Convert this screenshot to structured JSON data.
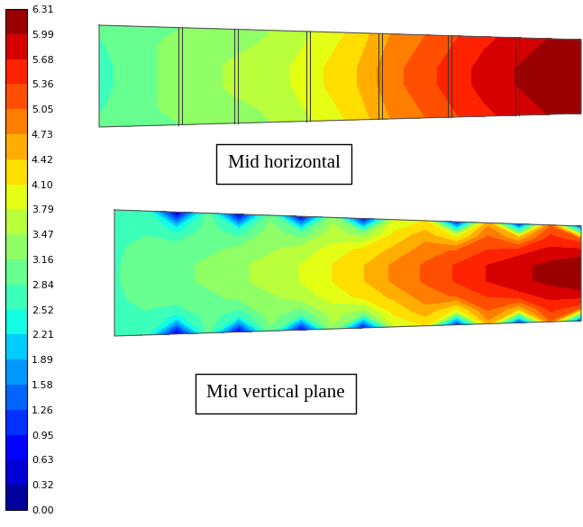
{
  "chart_data": {
    "type": "heatmap",
    "colorbar": {
      "range": [
        0.0,
        6.31
      ],
      "ticks": [
        {
          "value": 0.0,
          "label": "0.00"
        },
        {
          "value": 0.32,
          "label": "0.32"
        },
        {
          "value": 0.63,
          "label": "0.63"
        },
        {
          "value": 0.95,
          "label": "0.95"
        },
        {
          "value": 1.26,
          "label": "1.26"
        },
        {
          "value": 1.58,
          "label": "1.58"
        },
        {
          "value": 1.89,
          "label": "1.89"
        },
        {
          "value": 2.21,
          "label": "2.21"
        },
        {
          "value": 2.52,
          "label": "2.52"
        },
        {
          "value": 2.84,
          "label": "2.84"
        },
        {
          "value": 3.16,
          "label": "3.16"
        },
        {
          "value": 3.47,
          "label": "3.47"
        },
        {
          "value": 3.79,
          "label": "3.79"
        },
        {
          "value": 4.1,
          "label": "4.10"
        },
        {
          "value": 4.42,
          "label": "4.42"
        },
        {
          "value": 4.73,
          "label": "4.73"
        },
        {
          "value": 5.05,
          "label": "5.05"
        },
        {
          "value": 5.36,
          "label": "5.36"
        },
        {
          "value": 5.68,
          "label": "5.68"
        },
        {
          "value": 5.99,
          "label": "5.99"
        },
        {
          "value": 6.31,
          "label": "6.31"
        }
      ]
    },
    "panels": [
      {
        "label": "Mid horizontal",
        "cells": [
          [
            2.9,
            3.0,
            3.1,
            3.2,
            3.3,
            3.4,
            3.6,
            3.9,
            4.2,
            4.7,
            5.0,
            5.3,
            5.6,
            5.8,
            6.0,
            6.1
          ],
          [
            2.8,
            3.0,
            3.2,
            3.3,
            3.4,
            3.5,
            3.7,
            4.0,
            4.3,
            4.8,
            5.1,
            5.4,
            5.7,
            5.9,
            6.1,
            6.2
          ],
          [
            2.7,
            3.0,
            3.2,
            3.3,
            3.5,
            3.6,
            3.8,
            4.1,
            4.4,
            4.9,
            5.2,
            5.5,
            5.8,
            6.0,
            6.2,
            6.3
          ],
          [
            2.7,
            3.0,
            3.2,
            3.3,
            3.5,
            3.6,
            3.8,
            4.1,
            4.4,
            4.9,
            5.2,
            5.5,
            5.8,
            6.0,
            6.2,
            6.3
          ],
          [
            2.8,
            3.0,
            3.2,
            3.3,
            3.4,
            3.5,
            3.7,
            4.0,
            4.3,
            4.8,
            5.1,
            5.4,
            5.7,
            5.9,
            6.1,
            6.2
          ],
          [
            2.9,
            3.0,
            3.1,
            3.2,
            3.3,
            3.4,
            3.6,
            3.9,
            4.2,
            4.7,
            5.0,
            5.3,
            5.6,
            5.8,
            6.0,
            6.1
          ]
        ]
      },
      {
        "label": "Mid vertical plane",
        "cells": [
          [
            2.6,
            2.7,
            0.5,
            2.9,
            0.6,
            3.1,
            0.6,
            3.4,
            0.7,
            3.8,
            4.1,
            0.8,
            4.6,
            0.9,
            5.0,
            0.9
          ],
          [
            2.7,
            2.8,
            2.4,
            3.0,
            2.6,
            3.3,
            2.9,
            3.6,
            3.3,
            4.2,
            4.6,
            4.0,
            5.1,
            4.5,
            5.5,
            5.2
          ],
          [
            2.8,
            2.9,
            3.0,
            3.1,
            3.2,
            3.4,
            3.6,
            3.9,
            4.2,
            4.5,
            4.9,
            5.1,
            5.4,
            5.6,
            5.8,
            5.9
          ],
          [
            2.8,
            3.0,
            3.1,
            3.2,
            3.4,
            3.6,
            3.8,
            4.1,
            4.4,
            4.8,
            5.1,
            5.4,
            5.7,
            5.9,
            6.1,
            6.2
          ],
          [
            2.8,
            3.0,
            3.1,
            3.2,
            3.4,
            3.6,
            3.8,
            4.1,
            4.4,
            4.8,
            5.1,
            5.4,
            5.7,
            5.9,
            6.1,
            6.2
          ],
          [
            2.8,
            2.9,
            3.0,
            3.1,
            3.2,
            3.4,
            3.6,
            3.9,
            4.2,
            4.5,
            4.9,
            5.1,
            5.4,
            5.6,
            5.8,
            5.9
          ],
          [
            2.7,
            2.8,
            2.4,
            3.0,
            2.6,
            3.3,
            2.9,
            3.6,
            3.3,
            4.2,
            4.6,
            4.0,
            5.1,
            4.5,
            5.5,
            5.2
          ],
          [
            2.6,
            2.7,
            0.5,
            2.9,
            0.6,
            3.1,
            0.6,
            3.4,
            0.7,
            3.8,
            4.1,
            0.8,
            4.6,
            0.9,
            5.0,
            0.9
          ]
        ]
      }
    ]
  }
}
